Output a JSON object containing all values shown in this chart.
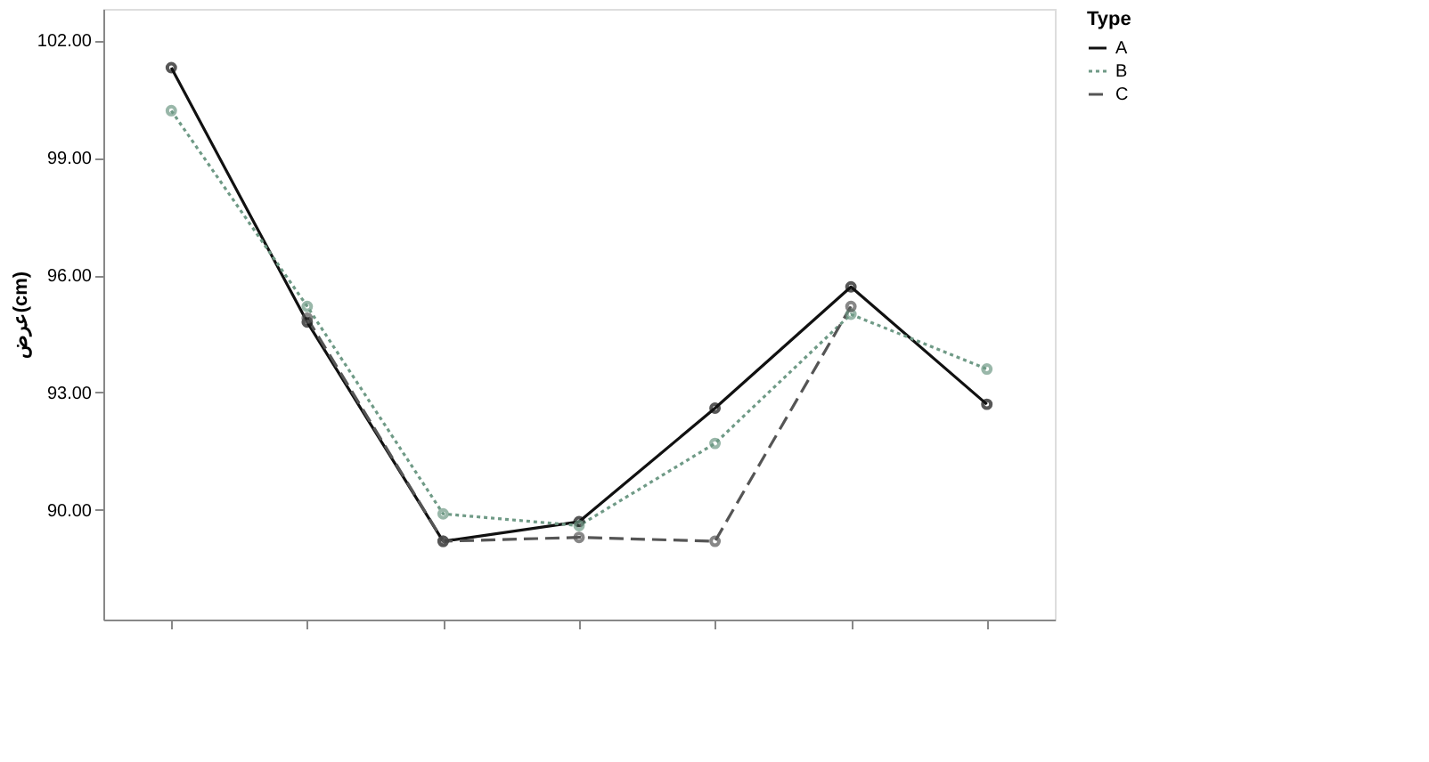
{
  "chart_data": {
    "type": "line",
    "ylabel": "عرض(cm)",
    "legend_title": "Type",
    "legend": "right",
    "grid": false,
    "marker": "circle",
    "categories": [
      null,
      null,
      null,
      null,
      null,
      null,
      null
    ],
    "ylim": [
      87.2,
      102.8
    ],
    "yticks": [
      {
        "value": 90,
        "label": "90.00"
      },
      {
        "value": 93,
        "label": "93.00"
      },
      {
        "value": 96,
        "label": "96.00"
      },
      {
        "value": 99,
        "label": "99.00"
      },
      {
        "value": 102,
        "label": "102.00"
      }
    ],
    "series": [
      {
        "name": "A",
        "color": "#111111",
        "line_style": "solid",
        "values": [
          101.3,
          94.8,
          89.2,
          89.7,
          92.6,
          95.7,
          92.7
        ]
      },
      {
        "name": "B",
        "color": "#6f9a86",
        "line_style": "dotted",
        "values": [
          100.2,
          95.2,
          89.9,
          89.6,
          91.7,
          95.0,
          93.6
        ]
      },
      {
        "name": "C",
        "color": "#555555",
        "line_style": "dashed",
        "values": [
          null,
          94.9,
          89.2,
          89.3,
          89.2,
          95.2,
          null
        ]
      }
    ]
  }
}
